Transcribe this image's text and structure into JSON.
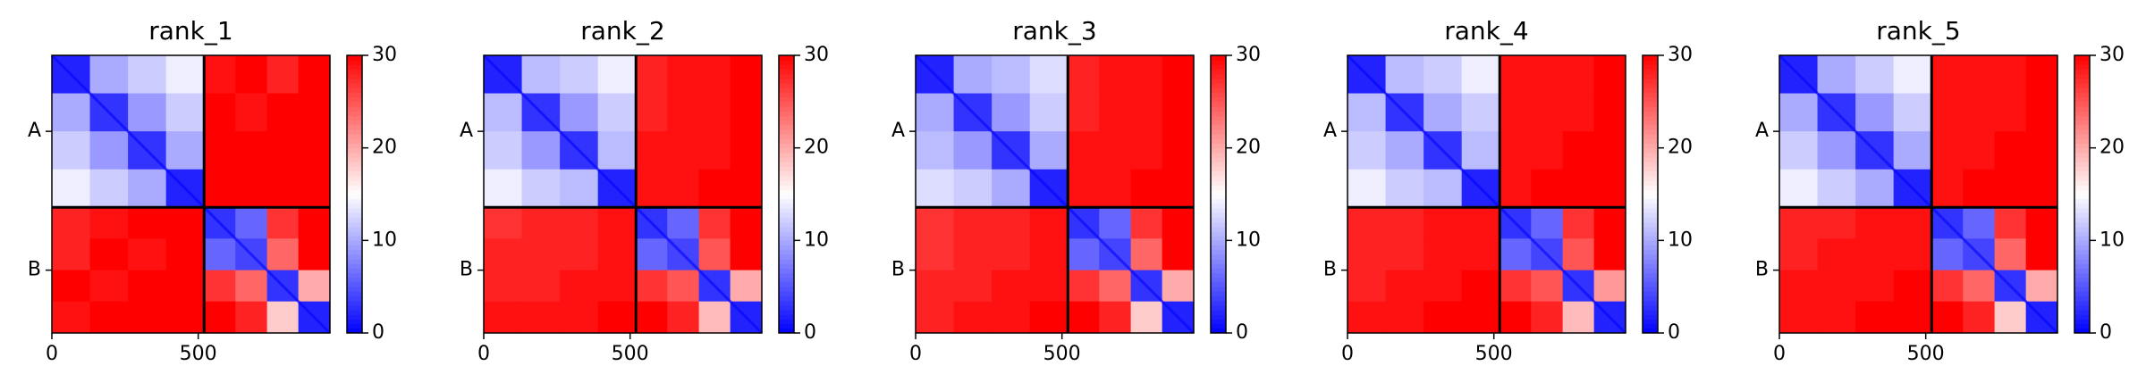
{
  "chart_data": [
    {
      "type": "heatmap",
      "title": "rank_1",
      "edges": [
        0,
        130,
        260,
        390,
        520,
        627,
        735,
        842,
        950
      ],
      "xlim": [
        0,
        950
      ],
      "xticks": [
        0,
        500
      ],
      "ylim": [
        950,
        0
      ],
      "yticks": [
        {
          "value": 260,
          "label": "A"
        },
        {
          "value": 735,
          "label": "B"
        }
      ],
      "boundaries": [
        520
      ],
      "clim": [
        0,
        30
      ],
      "cticks": [
        0,
        10,
        20,
        30
      ],
      "colormap": [
        "#0000ff",
        "#ffffff",
        "#ff0000"
      ],
      "matrix": [
        [
          2,
          10,
          12,
          14,
          29,
          30,
          28,
          30
        ],
        [
          10,
          3,
          9,
          12,
          30,
          29,
          30,
          30
        ],
        [
          12,
          9,
          3,
          10,
          30,
          30,
          30,
          30
        ],
        [
          14,
          12,
          10,
          2,
          30,
          30,
          30,
          30
        ],
        [
          28,
          29,
          30,
          30,
          3,
          6,
          27,
          30
        ],
        [
          28,
          30,
          29,
          30,
          6,
          4,
          24,
          30
        ],
        [
          30,
          29,
          30,
          30,
          27,
          24,
          3,
          20
        ],
        [
          29,
          30,
          30,
          30,
          30,
          28,
          18,
          2
        ]
      ]
    },
    {
      "type": "heatmap",
      "title": "rank_2",
      "edges": [
        0,
        130,
        260,
        390,
        520,
        627,
        735,
        842,
        950
      ],
      "xlim": [
        0,
        950
      ],
      "xticks": [
        0,
        500
      ],
      "ylim": [
        950,
        0
      ],
      "yticks": [
        {
          "value": 260,
          "label": "A"
        },
        {
          "value": 735,
          "label": "B"
        }
      ],
      "boundaries": [
        520
      ],
      "clim": [
        0,
        30
      ],
      "cticks": [
        0,
        10,
        20,
        30
      ],
      "colormap": [
        "#0000ff",
        "#ffffff",
        "#ff0000"
      ],
      "matrix": [
        [
          2,
          11,
          12,
          14,
          28,
          29,
          29,
          30
        ],
        [
          11,
          3,
          9,
          12,
          28,
          29,
          29,
          30
        ],
        [
          12,
          9,
          3,
          11,
          29,
          29,
          29,
          30
        ],
        [
          14,
          12,
          11,
          2,
          29,
          29,
          30,
          30
        ],
        [
          27,
          28,
          28,
          29,
          3,
          6,
          27,
          30
        ],
        [
          28,
          28,
          28,
          29,
          6,
          4,
          25,
          30
        ],
        [
          28,
          28,
          29,
          29,
          27,
          25,
          3,
          20
        ],
        [
          29,
          29,
          29,
          30,
          30,
          28,
          19,
          2
        ]
      ]
    },
    {
      "type": "heatmap",
      "title": "rank_3",
      "edges": [
        0,
        130,
        260,
        390,
        520,
        627,
        735,
        842,
        950
      ],
      "xlim": [
        0,
        950
      ],
      "xticks": [
        0,
        500
      ],
      "ylim": [
        950,
        0
      ],
      "yticks": [
        {
          "value": 260,
          "label": "A"
        },
        {
          "value": 735,
          "label": "B"
        }
      ],
      "boundaries": [
        520
      ],
      "clim": [
        0,
        30
      ],
      "cticks": [
        0,
        10,
        20,
        30
      ],
      "colormap": [
        "#0000ff",
        "#ffffff",
        "#ff0000"
      ],
      "matrix": [
        [
          2,
          10,
          11,
          13,
          28,
          29,
          29,
          30
        ],
        [
          10,
          3,
          9,
          12,
          28,
          29,
          29,
          30
        ],
        [
          11,
          9,
          3,
          10,
          29,
          29,
          29,
          30
        ],
        [
          13,
          12,
          10,
          2,
          29,
          29,
          30,
          30
        ],
        [
          27,
          28,
          28,
          29,
          3,
          6,
          27,
          30
        ],
        [
          27,
          28,
          28,
          29,
          6,
          4,
          24,
          30
        ],
        [
          28,
          28,
          29,
          29,
          27,
          24,
          3,
          20
        ],
        [
          28,
          29,
          29,
          30,
          30,
          28,
          18,
          2
        ]
      ]
    },
    {
      "type": "heatmap",
      "title": "rank_4",
      "edges": [
        0,
        130,
        260,
        390,
        520,
        627,
        735,
        842,
        950
      ],
      "xlim": [
        0,
        950
      ],
      "xticks": [
        0,
        500
      ],
      "ylim": [
        950,
        0
      ],
      "yticks": [
        {
          "value": 260,
          "label": "A"
        },
        {
          "value": 735,
          "label": "B"
        }
      ],
      "boundaries": [
        520
      ],
      "clim": [
        0,
        30
      ],
      "cticks": [
        0,
        10,
        20,
        30
      ],
      "colormap": [
        "#0000ff",
        "#ffffff",
        "#ff0000"
      ],
      "matrix": [
        [
          2,
          11,
          12,
          14,
          29,
          29,
          29,
          30
        ],
        [
          11,
          3,
          10,
          12,
          29,
          29,
          29,
          30
        ],
        [
          12,
          10,
          3,
          11,
          29,
          29,
          30,
          30
        ],
        [
          14,
          12,
          11,
          2,
          29,
          30,
          30,
          30
        ],
        [
          28,
          28,
          29,
          29,
          3,
          6,
          27,
          30
        ],
        [
          28,
          28,
          29,
          29,
          6,
          4,
          25,
          30
        ],
        [
          28,
          29,
          29,
          30,
          27,
          25,
          3,
          21
        ],
        [
          29,
          29,
          30,
          30,
          30,
          28,
          19,
          2
        ]
      ]
    },
    {
      "type": "heatmap",
      "title": "rank_5",
      "edges": [
        0,
        130,
        260,
        390,
        520,
        627,
        735,
        842,
        950
      ],
      "xlim": [
        0,
        950
      ],
      "xticks": [
        0,
        500
      ],
      "ylim": [
        950,
        0
      ],
      "yticks": [
        {
          "value": 260,
          "label": "A"
        },
        {
          "value": 735,
          "label": "B"
        }
      ],
      "boundaries": [
        520
      ],
      "clim": [
        0,
        30
      ],
      "cticks": [
        0,
        10,
        20,
        30
      ],
      "colormap": [
        "#0000ff",
        "#ffffff",
        "#ff0000"
      ],
      "matrix": [
        [
          2,
          10,
          12,
          14,
          29,
          29,
          29,
          30
        ],
        [
          10,
          3,
          9,
          12,
          29,
          29,
          29,
          30
        ],
        [
          12,
          9,
          3,
          10,
          29,
          29,
          30,
          30
        ],
        [
          14,
          12,
          10,
          2,
          29,
          30,
          30,
          30
        ],
        [
          28,
          28,
          29,
          29,
          3,
          6,
          27,
          30
        ],
        [
          28,
          29,
          29,
          29,
          6,
          4,
          24,
          30
        ],
        [
          29,
          29,
          29,
          30,
          27,
          24,
          3,
          20
        ],
        [
          29,
          29,
          30,
          30,
          30,
          28,
          18,
          2
        ]
      ]
    }
  ]
}
